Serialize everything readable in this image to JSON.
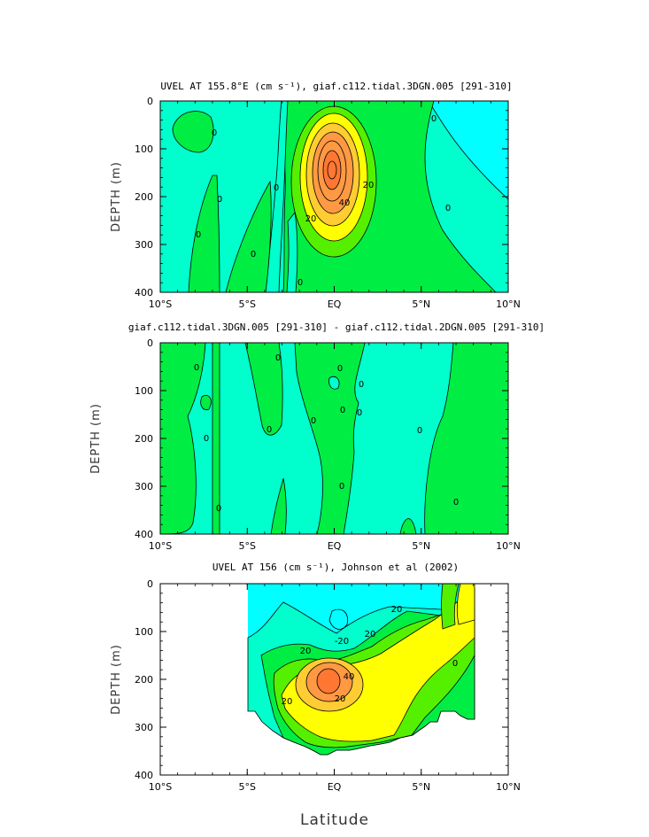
{
  "colors": {
    "cyan_bg": "#00ffff",
    "teal": "#00ffcc",
    "green": "#00ee44",
    "lightgreen": "#55f000",
    "yellow": "#ffff00",
    "gold": "#ffcc33",
    "orange": "#ff9944",
    "deep_orange": "#ff7733",
    "line": "#000000"
  },
  "xlabel": "Latitude",
  "chart_data": [
    {
      "type": "heatmap",
      "title": "UVEL AT 155.8°E (cm s⁻¹), giaf.c112.tidal.3DGN.005 [291-310]",
      "ylabel": "DEPTH (m)",
      "xlim": [
        -10,
        10
      ],
      "ylim": [
        400,
        0
      ],
      "xticks": [
        "10°S",
        "5°S",
        "EQ",
        "5°N",
        "10°N"
      ],
      "yticks": [
        "0",
        "100",
        "200",
        "300",
        "400"
      ],
      "contour_labels": [
        "0",
        "0",
        "0",
        "0",
        "0",
        "0",
        "0",
        "20",
        "40",
        "20",
        "0"
      ],
      "max_value_approx": 60,
      "max_location": {
        "lat": -0.1,
        "depth": 175
      }
    },
    {
      "type": "heatmap",
      "title": "giaf.c112.tidal.3DGN.005 [291-310] - giaf.c112.tidal.2DGN.005 [291-310]",
      "ylabel": "DEPTH (m)",
      "xlim": [
        -10,
        10
      ],
      "ylim": [
        400,
        0
      ],
      "xticks": [
        "10°S",
        "5°S",
        "EQ",
        "5°N",
        "10°N"
      ],
      "yticks": [
        "0",
        "100",
        "200",
        "300",
        "400"
      ],
      "contour_labels": [
        "0",
        "0",
        "0",
        "0",
        "0",
        "0",
        "0",
        "0",
        "0",
        "0",
        "0",
        "0",
        "0"
      ]
    },
    {
      "type": "heatmap",
      "title": "UVEL AT 156 (cm s⁻¹), Johnson et al (2002)",
      "ylabel": "DEPTH (m)",
      "xlim": [
        -10,
        10
      ],
      "ylim": [
        400,
        0
      ],
      "xticks": [
        "10°S",
        "5°S",
        "EQ",
        "5°N",
        "10°N"
      ],
      "yticks": [
        "0",
        "100",
        "200",
        "300",
        "400"
      ],
      "contour_labels": [
        "-20",
        "20",
        "20",
        "40",
        "20",
        "20",
        "20",
        "0"
      ],
      "max_value_approx": 50,
      "max_location": {
        "lat": -0.2,
        "depth": 205
      }
    }
  ]
}
